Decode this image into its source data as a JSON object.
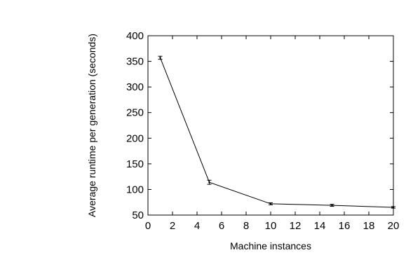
{
  "chart_data": {
    "type": "line",
    "title": "",
    "xlabel": "Machine instances",
    "ylabel": "Average runtime per generation (seconds)",
    "xlim": [
      0,
      20
    ],
    "ylim": [
      50,
      400
    ],
    "xticks": [
      0,
      2,
      4,
      6,
      8,
      10,
      12,
      14,
      16,
      18,
      20
    ],
    "yticks": [
      50,
      100,
      150,
      200,
      250,
      300,
      350,
      400
    ],
    "grid": false,
    "legend": "none",
    "series": [
      {
        "x": [
          1,
          5,
          10,
          15,
          20
        ],
        "y": [
          357,
          114,
          72,
          69,
          65
        ],
        "error": [
          3,
          4,
          2,
          2,
          1.5
        ],
        "color": "#000000"
      }
    ]
  }
}
